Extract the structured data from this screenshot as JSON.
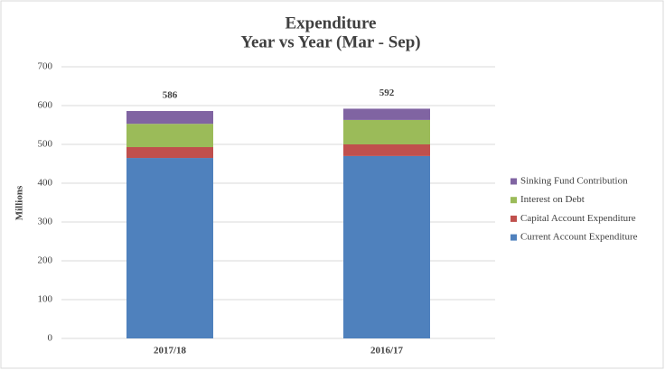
{
  "chart_data": {
    "type": "stacked_bar",
    "title": "Expenditure",
    "subtitle": "Year vs Year (Mar - Sep)",
    "y_label": "Millions",
    "categories": [
      "2017/18",
      "2016/17"
    ],
    "series": [
      {
        "name": "Current Account Expenditure",
        "color": "#4f81bd",
        "values": [
          465,
          470
        ]
      },
      {
        "name": "Capital Account Expenditure",
        "color": "#c0504d",
        "values": [
          28,
          30
        ]
      },
      {
        "name": "Interest on Debt",
        "color": "#9bbb59",
        "values": [
          60,
          63
        ]
      },
      {
        "name": "Sinking Fund Contribution",
        "color": "#8064a2",
        "values": [
          33,
          29
        ]
      }
    ],
    "totals": [
      586,
      592
    ],
    "ylim": [
      0,
      700
    ],
    "yticks": [
      0,
      100,
      200,
      300,
      400,
      500,
      600,
      700
    ],
    "grid": true,
    "legend": "right"
  }
}
